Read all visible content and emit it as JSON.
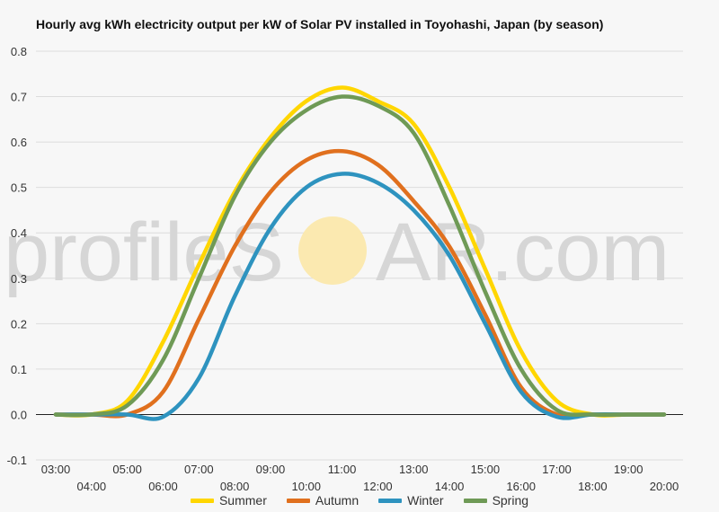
{
  "chart_data": {
    "type": "line",
    "title": "Hourly avg kWh electricity output per kW of Solar PV installed in Toyohashi, Japan (by season)",
    "xlabel": "",
    "ylabel": "",
    "x": [
      "03:00",
      "04:00",
      "05:00",
      "06:00",
      "07:00",
      "08:00",
      "09:00",
      "10:00",
      "11:00",
      "12:00",
      "13:00",
      "14:00",
      "15:00",
      "16:00",
      "17:00",
      "18:00",
      "19:00",
      "20:00"
    ],
    "y_ticks": [
      "0.8",
      "0.7",
      "0.6",
      "0.5",
      "0.4",
      "0.3",
      "0.2",
      "0.1",
      "0.0",
      "-0.1"
    ],
    "ylim": [
      -0.1,
      0.8
    ],
    "grid": true,
    "legend_position": "bottom",
    "series": [
      {
        "name": "Summer",
        "color": "#ffd600",
        "values": [
          0.0,
          0.0,
          0.03,
          0.16,
          0.33,
          0.49,
          0.61,
          0.69,
          0.72,
          0.69,
          0.64,
          0.5,
          0.32,
          0.14,
          0.03,
          0.0,
          0.0,
          0.0
        ]
      },
      {
        "name": "Autumn",
        "color": "#e0701e",
        "values": [
          0.0,
          0.0,
          0.0,
          0.05,
          0.21,
          0.37,
          0.49,
          0.56,
          0.58,
          0.55,
          0.47,
          0.37,
          0.22,
          0.06,
          0.0,
          0.0,
          0.0,
          0.0
        ]
      },
      {
        "name": "Winter",
        "color": "#2e93bf",
        "values": [
          0.0,
          0.0,
          0.0,
          -0.005,
          0.08,
          0.26,
          0.41,
          0.5,
          0.53,
          0.51,
          0.45,
          0.35,
          0.2,
          0.05,
          -0.005,
          0.0,
          0.0,
          0.0
        ]
      },
      {
        "name": "Spring",
        "color": "#6f9a56",
        "values": [
          0.0,
          0.0,
          0.02,
          0.12,
          0.3,
          0.48,
          0.6,
          0.67,
          0.7,
          0.68,
          0.62,
          0.46,
          0.27,
          0.1,
          0.01,
          0.0,
          0.0,
          0.0
        ]
      }
    ]
  },
  "watermark": {
    "text_left": "profileS",
    "text_middle": "OL",
    "text_right": "AR.com",
    "sun_color": "#fbe9b0"
  }
}
